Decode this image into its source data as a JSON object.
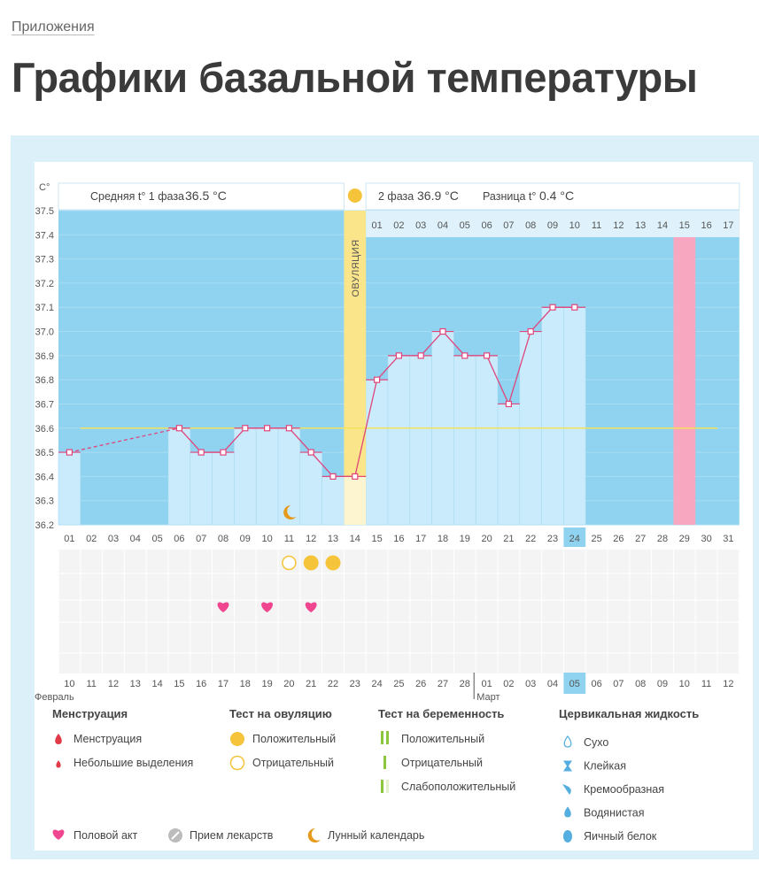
{
  "breadcrumb": "Приложения",
  "page_title": "Графики базальной температуры",
  "colors": {
    "chart_bg": "#8fd3f0",
    "bar": "#c9ebfb",
    "ovulation": "#fbe58a",
    "period_band": "#f8a7c0",
    "line": "#e0457b",
    "coverline": "#f3e35c",
    "heart": "#f0468f",
    "positive_test": "#f5c43a",
    "highlight": "#8fd3f0"
  },
  "chart_data": {
    "type": "line",
    "y_unit": "C°",
    "ylim": [
      36.2,
      37.5
    ],
    "y_ticks": [
      "37.5",
      "37.4",
      "37.3",
      "37.2",
      "37.1",
      "37.0",
      "36.9",
      "36.8",
      "36.7",
      "36.6",
      "36.5",
      "36.4",
      "36.3",
      "36.2"
    ],
    "cycle_days": [
      "01",
      "02",
      "03",
      "04",
      "05",
      "06",
      "07",
      "08",
      "09",
      "10",
      "11",
      "12",
      "13",
      "14",
      "15",
      "16",
      "17",
      "18",
      "19",
      "20",
      "21",
      "22",
      "23",
      "24",
      "25",
      "26",
      "27",
      "28",
      "29",
      "30",
      "31"
    ],
    "temperatures": [
      36.5,
      null,
      null,
      null,
      null,
      36.6,
      36.5,
      36.5,
      36.6,
      36.6,
      36.6,
      36.5,
      36.4,
      36.4,
      36.8,
      36.9,
      36.9,
      37.0,
      36.9,
      36.9,
      36.7,
      37.0,
      37.1,
      37.1,
      null,
      null,
      null,
      null,
      null,
      null,
      null
    ],
    "dashed_segment": [
      1,
      6
    ],
    "ovulation_day": 14,
    "ovulation_label": "ОВУЛЯЦИЯ",
    "coverline": 36.6,
    "phase2_day_labels": [
      "01",
      "02",
      "03",
      "04",
      "05",
      "06",
      "07",
      "08",
      "09",
      "10",
      "11",
      "12",
      "13",
      "14",
      "15",
      "16",
      "17"
    ],
    "highlight_day": 24,
    "period_day": 29,
    "phase1_text": "Средняя t° 1 фаза",
    "phase1_avg": "36.5 °C",
    "phase2_text": "2 фаза",
    "phase2_avg": "36.9 °C",
    "diff_text": "Разница t°",
    "diff_value": "0.4 °C",
    "ovulation_test_negative_days": [
      11
    ],
    "ovulation_test_positive_days": [
      12,
      13
    ],
    "intercourse_days": [
      8,
      10,
      12
    ],
    "moon_day": 11,
    "dates": [
      "10",
      "11",
      "12",
      "13",
      "14",
      "15",
      "16",
      "17",
      "18",
      "19",
      "20",
      "21",
      "22",
      "23",
      "24",
      "25",
      "26",
      "27",
      "28",
      "01",
      "02",
      "03",
      "04",
      "05",
      "06",
      "07",
      "08",
      "09",
      "10",
      "11",
      "12"
    ],
    "red_dates": [
      1,
      2,
      8,
      9,
      11,
      12,
      22,
      29,
      30
    ],
    "month_1": "Февраль",
    "month_2": "Март"
  },
  "legend": {
    "menstruation": {
      "title": "Менструация",
      "items": [
        "Менструация",
        "Небольшие выделения"
      ]
    },
    "ovulation_test": {
      "title": "Тест на овуляцию",
      "items": [
        "Положительный",
        "Отрицательный"
      ]
    },
    "pregnancy_test": {
      "title": "Тест на беременность",
      "items": [
        "Положительный",
        "Отрицательный",
        "Слабоположительный"
      ]
    },
    "cervical": {
      "title": "Цервикальная жидкость",
      "items": [
        "Сухо",
        "Клейкая",
        "Кремообразная",
        "Водянистая",
        "Яичный белок"
      ]
    },
    "bottom": [
      "Половой акт",
      "Прием лекарств",
      "Лунный календарь"
    ]
  }
}
